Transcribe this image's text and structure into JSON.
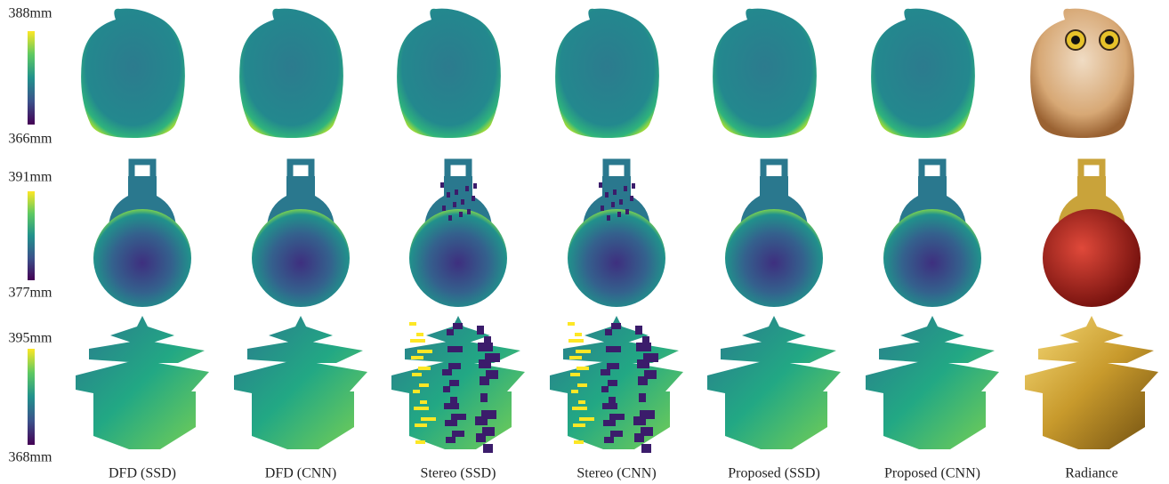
{
  "rows": [
    {
      "max": "388mm",
      "min": "366mm"
    },
    {
      "max": "391mm",
      "min": "377mm"
    },
    {
      "max": "395mm",
      "min": "368mm"
    }
  ],
  "columns": [
    "DFD (SSD)",
    "DFD (CNN)",
    "Stereo (SSD)",
    "Stereo (CNN)",
    "Proposed (SSD)",
    "Proposed (CNN)",
    "Radiance"
  ]
}
